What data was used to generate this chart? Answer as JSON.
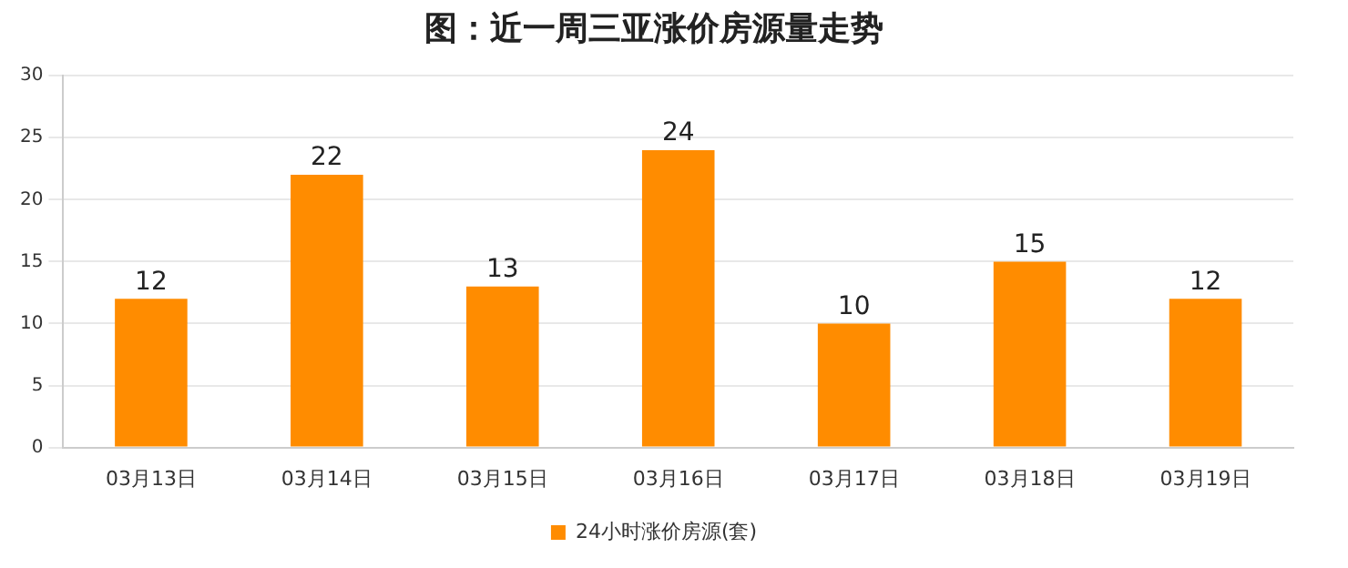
{
  "chart_data": {
    "type": "bar",
    "title": "图：近一周三亚涨价房源量走势",
    "categories": [
      "03月13日",
      "03月14日",
      "03月15日",
      "03月16日",
      "03月17日",
      "03月18日",
      "03月19日"
    ],
    "series": [
      {
        "name": "24小时涨价房源(套)",
        "color": "#ff8c00",
        "values": [
          12,
          22,
          13,
          24,
          10,
          15,
          12
        ]
      }
    ],
    "ylim": [
      0,
      30
    ],
    "yticks": [
      0,
      5,
      10,
      15,
      20,
      25,
      30
    ],
    "grid": "y",
    "legend": "bottom",
    "data_labels": true
  }
}
